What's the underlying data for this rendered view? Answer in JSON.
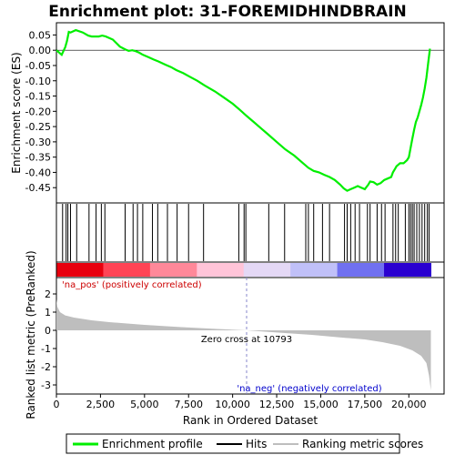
{
  "chart_data": {
    "type": "line",
    "title": "Enrichment plot: 31-FOREMIDHINDBRAIN",
    "colors": {
      "enrichment": "#00ee00",
      "hits": "#000000",
      "metric": "#bebebe"
    },
    "legend": {
      "position": "bottom",
      "items": [
        "Enrichment profile",
        "Hits",
        "Ranking metric scores"
      ]
    },
    "top_panel": {
      "ylabel": "Enrichment score (ES)",
      "ylim": [
        -0.5,
        0.09
      ],
      "yticks": [
        "0.05",
        "0.00",
        "-0.05",
        "-0.10",
        "-0.15",
        "-0.20",
        "-0.25",
        "-0.30",
        "-0.35",
        "-0.40",
        "-0.45"
      ],
      "ytick_values": [
        0.05,
        0.0,
        -0.05,
        -0.1,
        -0.15,
        -0.2,
        -0.25,
        -0.3,
        -0.35,
        -0.4,
        -0.45
      ],
      "grid": false,
      "series": [
        {
          "x": [
            0,
            300,
            500,
            600,
            700,
            800,
            1100,
            1500,
            1800,
            2000,
            2200,
            2400,
            2600,
            2800,
            3200,
            3600,
            3900,
            4100,
            4300,
            4500,
            4700,
            4900,
            5200,
            5500,
            5800,
            6200,
            6500,
            6800,
            7200,
            7600,
            8000,
            8400,
            9000,
            9500,
            10000,
            10400,
            10793,
            11200,
            11600,
            12000,
            12500,
            13000,
            13500,
            14000,
            14300,
            14600,
            14900,
            15200,
            15500,
            15800,
            16100,
            16300,
            16500,
            16700,
            16900,
            17100,
            17300,
            17500,
            17700,
            17800,
            18000,
            18200,
            18400,
            18600,
            18800,
            19000,
            19100,
            19200,
            19300,
            19500,
            19700,
            19900,
            20000,
            20100,
            20200,
            20300,
            20400,
            20500,
            20600,
            20700,
            20800,
            20900,
            21000,
            21100,
            21200
          ],
          "y": [
            0.0,
            -0.015,
            0.01,
            0.03,
            0.06,
            0.058,
            0.066,
            0.058,
            0.048,
            0.045,
            0.045,
            0.045,
            0.048,
            0.045,
            0.035,
            0.012,
            0.003,
            -0.002,
            0.0,
            -0.003,
            -0.008,
            -0.015,
            -0.022,
            -0.03,
            -0.037,
            -0.048,
            -0.055,
            -0.065,
            -0.075,
            -0.088,
            -0.1,
            -0.115,
            -0.135,
            -0.155,
            -0.175,
            -0.195,
            -0.215,
            -0.235,
            -0.255,
            -0.275,
            -0.3,
            -0.325,
            -0.345,
            -0.37,
            -0.385,
            -0.395,
            -0.4,
            -0.408,
            -0.415,
            -0.425,
            -0.44,
            -0.452,
            -0.46,
            -0.455,
            -0.45,
            -0.445,
            -0.45,
            -0.455,
            -0.44,
            -0.43,
            -0.432,
            -0.44,
            -0.435,
            -0.425,
            -0.42,
            -0.415,
            -0.4,
            -0.39,
            -0.38,
            -0.37,
            -0.37,
            -0.36,
            -0.35,
            -0.32,
            -0.29,
            -0.26,
            -0.235,
            -0.22,
            -0.2,
            -0.18,
            -0.155,
            -0.125,
            -0.09,
            -0.04,
            0.005
          ]
        }
      ]
    },
    "hits": [
      350,
      550,
      650,
      800,
      1150,
      1850,
      2250,
      2550,
      2750,
      3900,
      4350,
      4600,
      4900,
      5450,
      5750,
      6300,
      6850,
      7500,
      8350,
      10350,
      10650,
      10750,
      12050,
      12950,
      14150,
      14300,
      14600,
      15100,
      15500,
      16350,
      16500,
      16700,
      16950,
      17200,
      17650,
      17800,
      18200,
      18450,
      18650,
      19100,
      19250,
      19400,
      19800,
      20000,
      20100,
      20200,
      20300,
      20450,
      20600,
      20750,
      20900,
      21050,
      21150
    ],
    "bottom_panel": {
      "ylabel": "Ranked list metric (PreRanked)",
      "xlabel": "Rank in Ordered Dataset",
      "xlim": [
        0,
        22000
      ],
      "ylim": [
        -3.5,
        2.9
      ],
      "xticks": [
        "0",
        "2,500",
        "5,000",
        "7,500",
        "10,000",
        "12,500",
        "15,000",
        "17,500",
        "20,000"
      ],
      "xtick_values": [
        0,
        2500,
        5000,
        7500,
        10000,
        12500,
        15000,
        17500,
        20000
      ],
      "yticks": [
        "2",
        "1",
        "0",
        "-1",
        "-2",
        "-3"
      ],
      "ytick_values": [
        2,
        1,
        0,
        -1,
        -2,
        -3
      ],
      "zero_cross": 10793,
      "zero_cross_label": "Zero cross at 10793",
      "pos_label": "'na_pos' (positively correlated)",
      "neg_label": "'na_neg' (negatively correlated)",
      "metric_curve": {
        "x": [
          0,
          50,
          200,
          500,
          1000,
          2000,
          3000,
          5000,
          7000,
          9000,
          10793,
          12500,
          14500,
          16000,
          17500,
          18500,
          19500,
          20200,
          20700,
          21000,
          21150,
          21250
        ],
        "y": [
          1.7,
          1.3,
          1.0,
          0.82,
          0.7,
          0.55,
          0.45,
          0.3,
          0.18,
          0.08,
          0.0,
          -0.12,
          -0.25,
          -0.38,
          -0.5,
          -0.65,
          -0.85,
          -1.1,
          -1.4,
          -1.8,
          -2.5,
          -3.3
        ]
      },
      "heat_colors": [
        "#e8000e",
        "#ff4455",
        "#ff8899",
        "#ffc4d8",
        "#e4d8f5",
        "#c0c0f8",
        "#7070f0",
        "#2a00d0"
      ]
    }
  }
}
